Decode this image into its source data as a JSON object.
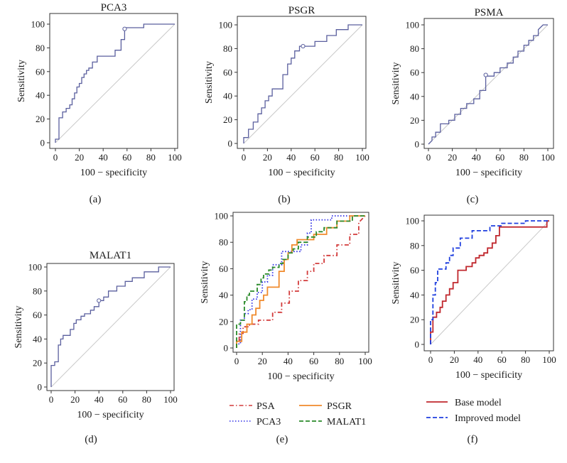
{
  "figure": {
    "colors": {
      "roc_line": "#5a5f9e",
      "diagonal": "#c9c9c9",
      "psa": "#d23a3a",
      "pca3": "#2e2ee6",
      "psgr": "#f08a2c",
      "malat1": "#2a8a2a",
      "base_model": "#c0272d",
      "improved_model": "#1f3fdf"
    }
  },
  "chart_data": [
    {
      "panel": "(a)",
      "type": "line",
      "title": "PCA3",
      "xlabel": "100 − specificity",
      "ylabel": "Sensitivity",
      "xlim": [
        0,
        100
      ],
      "ylim": [
        0,
        100
      ],
      "xticks": [
        0,
        20,
        40,
        60,
        80,
        100
      ],
      "yticks": [
        0,
        20,
        40,
        60,
        80,
        100
      ],
      "diagonal": true,
      "series": [
        {
          "name": "PCA3",
          "style": "solid",
          "color": "#5a5f9e",
          "x": [
            0,
            0,
            3,
            3,
            6,
            6,
            9,
            9,
            12,
            12,
            14,
            14,
            16,
            16,
            18,
            18,
            20,
            20,
            22,
            22,
            24,
            24,
            26,
            26,
            28,
            28,
            31,
            31,
            35,
            35,
            50,
            50,
            55,
            55,
            58,
            58,
            74,
            74,
            100
          ],
          "y": [
            0,
            3,
            3,
            21,
            21,
            26,
            26,
            29,
            29,
            32,
            32,
            37,
            37,
            42,
            42,
            47,
            47,
            50,
            50,
            55,
            55,
            58,
            58,
            61,
            61,
            63,
            63,
            68,
            68,
            73,
            73,
            78,
            78,
            87,
            87,
            97,
            97,
            100,
            100
          ],
          "marker": {
            "x": 58,
            "y": 96
          }
        }
      ]
    },
    {
      "panel": "(b)",
      "type": "line",
      "title": "PSGR",
      "xlabel": "100 − specificity",
      "ylabel": "Sensitivity",
      "xlim": [
        0,
        100
      ],
      "ylim": [
        0,
        100
      ],
      "xticks": [
        0,
        20,
        40,
        60,
        80,
        100
      ],
      "yticks": [
        0,
        20,
        40,
        60,
        80,
        100
      ],
      "diagonal": true,
      "series": [
        {
          "name": "PSGR",
          "style": "solid",
          "color": "#5a5f9e",
          "x": [
            0,
            0,
            4,
            4,
            8,
            8,
            12,
            12,
            15,
            15,
            18,
            18,
            21,
            21,
            24,
            24,
            33,
            33,
            37,
            37,
            40,
            40,
            43,
            43,
            47,
            47,
            52,
            52,
            60,
            60,
            70,
            70,
            78,
            78,
            88,
            88,
            98,
            100
          ],
          "y": [
            0,
            5,
            5,
            12,
            12,
            18,
            18,
            25,
            25,
            30,
            30,
            36,
            36,
            40,
            40,
            46,
            46,
            58,
            58,
            67,
            67,
            72,
            72,
            78,
            78,
            82,
            82,
            82,
            82,
            86,
            86,
            91,
            91,
            96,
            96,
            100,
            100,
            100
          ],
          "marker": {
            "x": 50,
            "y": 82
          }
        }
      ]
    },
    {
      "panel": "(c)",
      "type": "line",
      "title": "PSMA",
      "xlabel": "100 − specificity",
      "ylabel": "Sensitivity",
      "xlim": [
        0,
        100
      ],
      "ylim": [
        0,
        100
      ],
      "xticks": [
        0,
        20,
        40,
        60,
        80,
        100
      ],
      "yticks": [
        0,
        20,
        40,
        60,
        80,
        100
      ],
      "diagonal": true,
      "series": [
        {
          "name": "PSMA",
          "style": "solid",
          "color": "#5a5f9e",
          "x": [
            0,
            3,
            3,
            6,
            6,
            10,
            10,
            17,
            17,
            22,
            22,
            27,
            27,
            32,
            32,
            38,
            38,
            43,
            43,
            48,
            48,
            55,
            55,
            60,
            60,
            66,
            66,
            71,
            71,
            75,
            75,
            80,
            80,
            84,
            84,
            88,
            88,
            92,
            92,
            96,
            100
          ],
          "y": [
            0,
            3,
            6,
            6,
            10,
            10,
            17,
            17,
            20,
            20,
            25,
            25,
            30,
            30,
            34,
            34,
            38,
            38,
            45,
            45,
            57,
            57,
            60,
            60,
            64,
            64,
            68,
            68,
            73,
            73,
            78,
            78,
            83,
            83,
            87,
            87,
            91,
            91,
            96,
            100,
            100
          ],
          "marker": {
            "x": 48,
            "y": 58
          }
        }
      ]
    },
    {
      "panel": "(d)",
      "type": "line",
      "title": "MALAT1",
      "xlabel": "100 − specificity",
      "ylabel": "Sensitivity",
      "xlim": [
        0,
        100
      ],
      "ylim": [
        0,
        100
      ],
      "xticks": [
        0,
        20,
        40,
        60,
        80,
        100
      ],
      "yticks": [
        0,
        20,
        40,
        60,
        80,
        100
      ],
      "diagonal": true,
      "series": [
        {
          "name": "MALAT1",
          "style": "solid",
          "color": "#5a5f9e",
          "x": [
            0,
            0,
            3,
            3,
            6,
            6,
            8,
            8,
            10,
            10,
            16,
            16,
            19,
            19,
            21,
            21,
            25,
            25,
            28,
            28,
            33,
            33,
            36,
            36,
            40,
            40,
            44,
            44,
            48,
            48,
            55,
            55,
            62,
            62,
            68,
            68,
            78,
            78,
            90,
            90,
            100
          ],
          "y": [
            0,
            18,
            18,
            21,
            21,
            35,
            35,
            40,
            40,
            43,
            43,
            48,
            48,
            53,
            53,
            56,
            56,
            59,
            59,
            61,
            61,
            64,
            64,
            67,
            67,
            72,
            72,
            75,
            75,
            80,
            80,
            84,
            84,
            88,
            88,
            91,
            91,
            96,
            96,
            100,
            100
          ],
          "marker": {
            "x": 40,
            "y": 72
          }
        }
      ]
    },
    {
      "panel": "(e)",
      "type": "line",
      "title": "",
      "xlabel": "100 − specificity",
      "ylabel": "Sensitivity",
      "xlim": [
        0,
        100
      ],
      "ylim": [
        0,
        100
      ],
      "xticks": [
        0,
        20,
        40,
        60,
        80,
        100
      ],
      "yticks": [
        0,
        20,
        40,
        60,
        80,
        100
      ],
      "diagonal": false,
      "legend": [
        "PSA",
        "PCA3",
        "PSGR",
        "MALAT1"
      ],
      "series": [
        {
          "name": "PSA",
          "style": "dashdot",
          "color": "#d23a3a",
          "x": [
            0,
            0,
            2,
            2,
            5,
            5,
            10,
            10,
            17,
            17,
            28,
            28,
            35,
            35,
            41,
            41,
            48,
            48,
            55,
            55,
            60,
            60,
            68,
            68,
            78,
            78,
            88,
            88,
            95,
            95,
            100
          ],
          "y": [
            0,
            5,
            5,
            11,
            11,
            16,
            16,
            18,
            18,
            21,
            21,
            27,
            27,
            34,
            34,
            43,
            43,
            51,
            51,
            58,
            58,
            64,
            64,
            70,
            70,
            78,
            78,
            86,
            86,
            95,
            100
          ]
        },
        {
          "name": "PCA3",
          "style": "dotted",
          "color": "#2e2ee6",
          "x": [
            0,
            0,
            3,
            3,
            6,
            6,
            9,
            9,
            12,
            12,
            16,
            16,
            20,
            20,
            24,
            24,
            28,
            28,
            35,
            35,
            50,
            50,
            55,
            55,
            58,
            58,
            74,
            74,
            100
          ],
          "y": [
            0,
            3,
            3,
            21,
            21,
            26,
            26,
            29,
            29,
            37,
            37,
            42,
            42,
            50,
            50,
            55,
            55,
            63,
            63,
            73,
            73,
            78,
            78,
            87,
            87,
            97,
            97,
            100,
            100
          ]
        },
        {
          "name": "PSGR",
          "style": "solid",
          "color": "#f08a2c",
          "x": [
            0,
            0,
            4,
            4,
            8,
            8,
            12,
            12,
            15,
            15,
            18,
            18,
            21,
            21,
            24,
            24,
            33,
            33,
            37,
            37,
            40,
            40,
            43,
            43,
            47,
            47,
            60,
            60,
            70,
            70,
            78,
            78,
            88,
            88,
            100
          ],
          "y": [
            0,
            5,
            5,
            12,
            12,
            18,
            18,
            25,
            25,
            30,
            30,
            36,
            36,
            40,
            40,
            46,
            46,
            58,
            58,
            67,
            67,
            72,
            72,
            78,
            78,
            82,
            82,
            86,
            86,
            91,
            91,
            96,
            96,
            100,
            100
          ]
        },
        {
          "name": "MALAT1",
          "style": "dashed",
          "color": "#2a8a2a",
          "x": [
            0,
            0,
            3,
            3,
            6,
            6,
            8,
            8,
            10,
            10,
            16,
            16,
            19,
            19,
            21,
            21,
            25,
            25,
            28,
            28,
            33,
            33,
            36,
            36,
            40,
            40,
            44,
            44,
            48,
            48,
            55,
            55,
            62,
            62,
            68,
            68,
            78,
            78,
            90,
            90,
            100
          ],
          "y": [
            0,
            18,
            18,
            21,
            21,
            35,
            35,
            40,
            40,
            43,
            43,
            48,
            48,
            53,
            53,
            56,
            56,
            59,
            59,
            61,
            61,
            64,
            64,
            67,
            67,
            72,
            72,
            75,
            75,
            80,
            80,
            84,
            84,
            88,
            88,
            91,
            91,
            96,
            96,
            100,
            100
          ]
        }
      ]
    },
    {
      "panel": "(f)",
      "type": "line",
      "title": "",
      "xlabel": "100 − specificity",
      "ylabel": "Sensitivity",
      "xlim": [
        0,
        100
      ],
      "ylim": [
        0,
        100
      ],
      "xticks": [
        0,
        20,
        40,
        60,
        80,
        100
      ],
      "yticks": [
        0,
        20,
        40,
        60,
        80,
        100
      ],
      "diagonal": true,
      "legend": [
        "Base model",
        "Improved model"
      ],
      "series": [
        {
          "name": "Base model",
          "style": "solid",
          "color": "#c0272d",
          "x": [
            0,
            0,
            2,
            2,
            5,
            5,
            8,
            8,
            10,
            10,
            13,
            13,
            16,
            16,
            19,
            19,
            23,
            23,
            30,
            30,
            35,
            35,
            38,
            38,
            41,
            41,
            45,
            45,
            48,
            48,
            52,
            52,
            55,
            55,
            58,
            58,
            98,
            98,
            100
          ],
          "y": [
            0,
            10,
            10,
            22,
            22,
            26,
            26,
            30,
            30,
            35,
            35,
            40,
            40,
            45,
            45,
            50,
            50,
            60,
            60,
            63,
            63,
            66,
            66,
            70,
            70,
            72,
            72,
            74,
            74,
            78,
            78,
            82,
            82,
            88,
            88,
            95,
            95,
            100,
            100
          ]
        },
        {
          "name": "Improved model",
          "style": "dashed",
          "color": "#1f3fdf",
          "x": [
            0,
            0,
            2,
            2,
            4,
            4,
            6,
            6,
            13,
            13,
            16,
            16,
            19,
            19,
            25,
            25,
            35,
            35,
            50,
            50,
            60,
            60,
            80,
            80,
            100
          ],
          "y": [
            0,
            20,
            20,
            40,
            40,
            50,
            50,
            61,
            61,
            66,
            66,
            72,
            72,
            78,
            78,
            86,
            86,
            92,
            92,
            96,
            96,
            98,
            98,
            100,
            100
          ]
        }
      ]
    }
  ],
  "panel_labels": [
    "(a)",
    "(b)",
    "(c)",
    "(d)",
    "(e)",
    "(f)"
  ],
  "legend_e": {
    "psa": "PSA",
    "pca3": "PCA3",
    "psgr": "PSGR",
    "malat1": "MALAT1"
  },
  "legend_f": {
    "base": "Base model",
    "improved": "Improved model"
  }
}
